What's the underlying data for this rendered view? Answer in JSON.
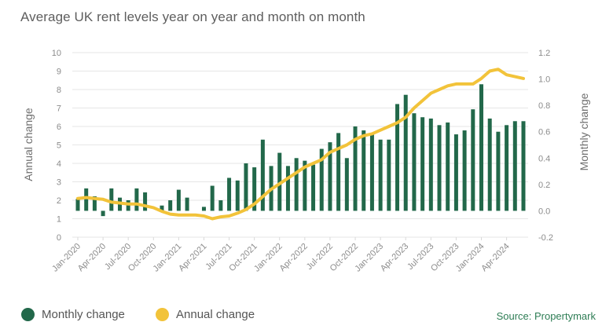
{
  "title": "Average UK rent levels year on year and month on month",
  "legend": {
    "monthly": "Monthly change",
    "annual": "Annual change"
  },
  "source": "Source: Propertymark",
  "colors": {
    "monthly": "#22684a",
    "annual": "#f2c33a",
    "grid": "#e6e6e6",
    "source": "#2e7d55"
  },
  "chart_data": {
    "type": "bar+line",
    "title": "Average UK rent levels year on year and month on month",
    "ylabel_left": "Annual change",
    "ylabel_right": "Monthly change",
    "ylim_left": [
      0,
      10
    ],
    "ylim_right": [
      -0.2,
      1.2
    ],
    "yticks_left": [
      "0",
      "1",
      "2",
      "3",
      "4",
      "5",
      "6",
      "7",
      "8",
      "9",
      "10"
    ],
    "yticks_right": [
      "-0.2",
      "0.0",
      "0.2",
      "0.4",
      "0.6",
      "0.8",
      "1.0",
      "1.2"
    ],
    "grid": true,
    "legend_position": "bottom-left",
    "xtick_labels": [
      "Jan-2020",
      "Apr-2020",
      "Jul-2020",
      "Oct-2020",
      "Jan-2021",
      "Apr-2021",
      "Jul-2021",
      "Oct-2021",
      "Jan-2022",
      "Apr-2022",
      "Jul-2022",
      "Oct-2022",
      "Jan-2023",
      "Apr-2023",
      "Jul-2023",
      "Oct-2023",
      "Jan-2024",
      "Apr-2024"
    ],
    "months": 54,
    "series": [
      {
        "name": "Monthly change",
        "type": "bar",
        "axis": "right",
        "values": [
          0.09,
          0.17,
          0.11,
          -0.04,
          0.17,
          0.1,
          0.08,
          0.17,
          0.14,
          0.0,
          0.04,
          0.08,
          0.16,
          0.1,
          0.0,
          0.03,
          0.19,
          0.08,
          0.25,
          0.23,
          0.36,
          0.33,
          0.54,
          0.34,
          0.44,
          0.34,
          0.4,
          0.38,
          0.35,
          0.47,
          0.52,
          0.59,
          0.4,
          0.64,
          0.61,
          0.58,
          0.54,
          0.54,
          0.81,
          0.88,
          0.74,
          0.71,
          0.7,
          0.65,
          0.67,
          0.58,
          0.61,
          0.77,
          0.96,
          0.7,
          0.6,
          0.65,
          0.68,
          0.68
        ]
      },
      {
        "name": "Annual change",
        "type": "line",
        "axis": "left",
        "values": [
          2.1,
          2.15,
          2.1,
          2.05,
          1.9,
          1.85,
          1.8,
          1.8,
          1.7,
          1.6,
          1.4,
          1.25,
          1.2,
          1.2,
          1.2,
          1.15,
          1.0,
          1.1,
          1.15,
          1.3,
          1.5,
          1.8,
          2.2,
          2.6,
          2.9,
          3.2,
          3.5,
          3.8,
          4.0,
          4.2,
          4.6,
          4.8,
          5.0,
          5.3,
          5.5,
          5.6,
          5.8,
          6.0,
          6.2,
          6.5,
          7.0,
          7.4,
          7.8,
          8.0,
          8.2,
          8.3,
          8.3,
          8.3,
          8.6,
          9.0,
          9.1,
          8.8,
          8.7,
          8.6
        ]
      }
    ]
  }
}
